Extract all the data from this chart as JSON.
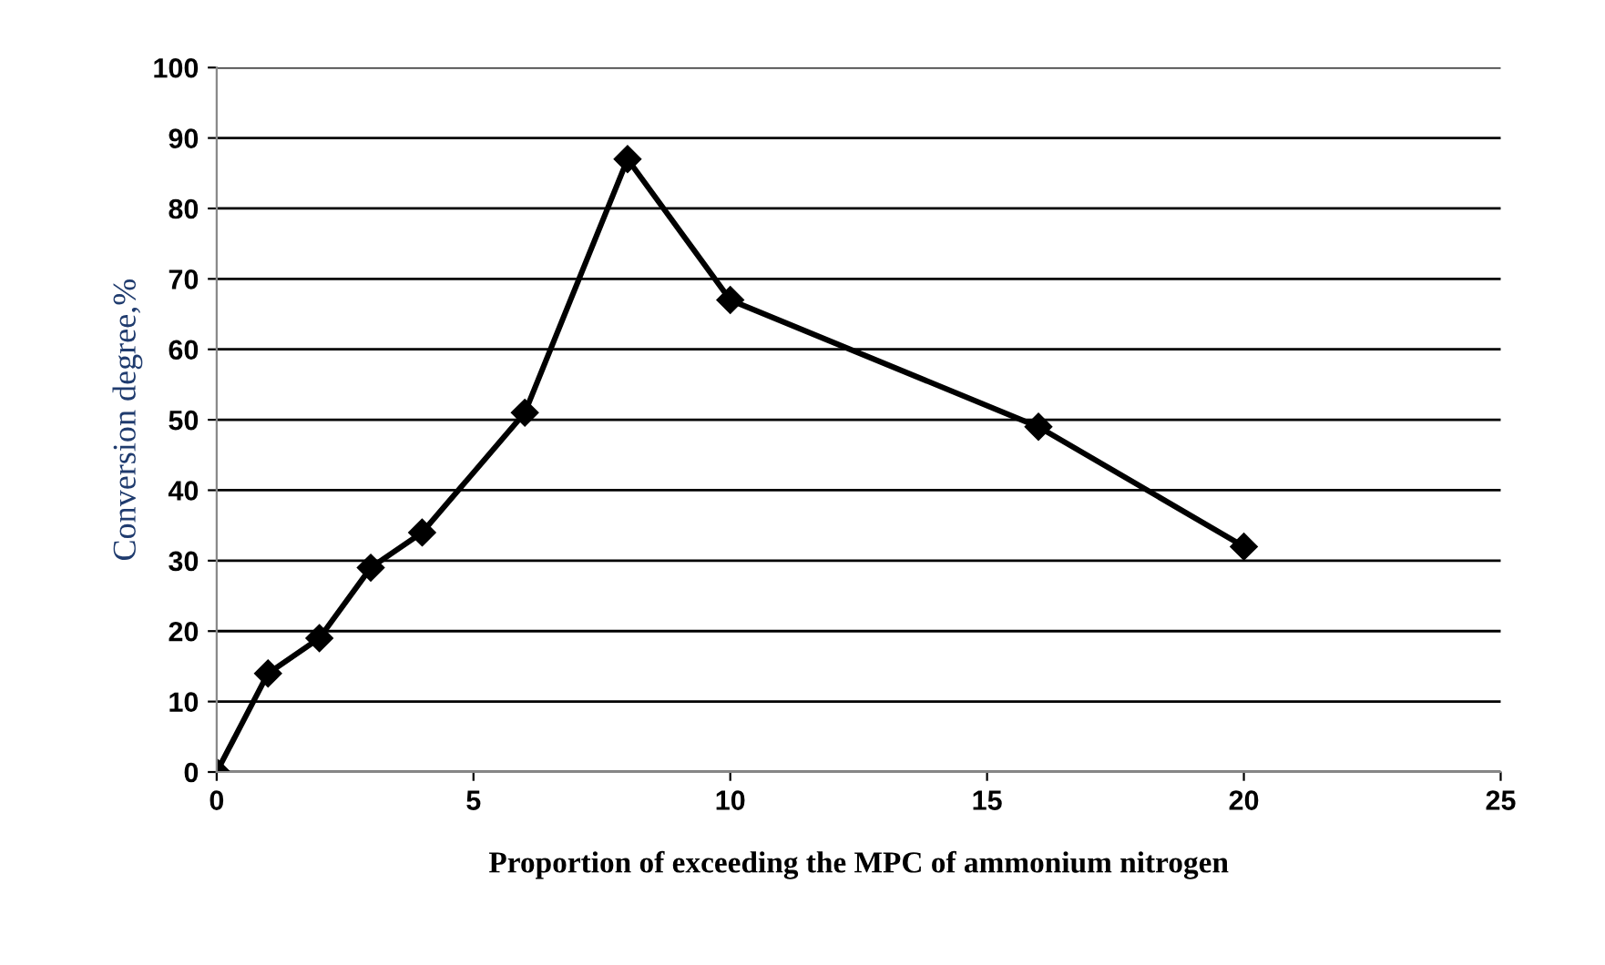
{
  "chart_data": {
    "type": "line",
    "xlabel": "Proportion of exceeding the MPC of ammonium nitrogen",
    "ylabel": "Conversion degree,%",
    "series": [
      {
        "color": "#000000",
        "x": [
          0,
          1,
          2,
          3,
          4,
          6,
          8,
          10,
          16,
          20
        ],
        "values": [
          0,
          14,
          19,
          29,
          34,
          51,
          87,
          67,
          49,
          32
        ]
      }
    ],
    "xlim": [
      0,
      25
    ],
    "xticks": [
      0,
      5,
      10,
      15,
      20,
      25
    ],
    "ylim": [
      0,
      100
    ],
    "yticks": [
      0,
      10,
      20,
      30,
      40,
      50,
      60,
      70,
      80,
      90,
      100
    ],
    "grid": "y",
    "marker": "diamond",
    "line_style": "solid",
    "legend": false
  }
}
